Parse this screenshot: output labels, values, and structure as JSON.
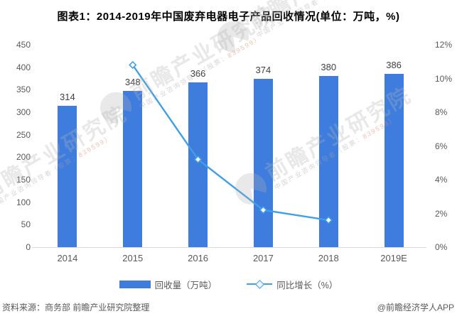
{
  "title": "图表1：2014-2019年中国废弃电器电子产品回收情况(单位：万吨，%)",
  "chart_data": {
    "type": "bar+line combo",
    "categories": [
      "2014",
      "2015",
      "2016",
      "2017",
      "2018",
      "2019E"
    ],
    "series": [
      {
        "name": "回收量（万吨）",
        "type": "bar",
        "axis": "left",
        "values": [
          314,
          348,
          366,
          374,
          380,
          386
        ],
        "data_labels": [
          "314",
          "348",
          "366",
          "374",
          "380",
          "386"
        ]
      },
      {
        "name": "同比增长（%）",
        "type": "line",
        "axis": "right",
        "marker": "diamond",
        "values": [
          null,
          10.8,
          5.2,
          2.2,
          1.6,
          null
        ]
      }
    ],
    "left_axis": {
      "min": 0,
      "max": 450,
      "ticks": [
        "450",
        "400",
        "350",
        "300",
        "250",
        "200",
        "150",
        "100",
        "50",
        "0"
      ]
    },
    "right_axis": {
      "min": 0,
      "max": 12,
      "ticks": [
        "12%",
        "10%",
        "8%",
        "6%",
        "4%",
        "2%",
        "0%"
      ]
    },
    "grid": false,
    "legend_position": "bottom"
  },
  "legend": {
    "items": [
      {
        "label": "回收量（万吨）",
        "swatch": "bar"
      },
      {
        "label": "同比增长（%）",
        "swatch": "line-diamond"
      }
    ]
  },
  "footer": {
    "source": "资料来源：商务部 前瞻产业研究院整理",
    "credit": "@前瞻经济学人APP"
  },
  "watermark": {
    "brand": "前瞻产业研究院",
    "tagline_prefix": "中国产业咨询领导者（股票：",
    "stock": "839599）"
  },
  "colors": {
    "bar": "#3E7DDE",
    "line": "#3FA0E8",
    "marker_fill": "#ffffff",
    "title_text": "#000000",
    "bar_label_text": "#404040",
    "axis_text": "#595959",
    "axis_line": "#D9D9D9",
    "source_text": "#595959"
  }
}
